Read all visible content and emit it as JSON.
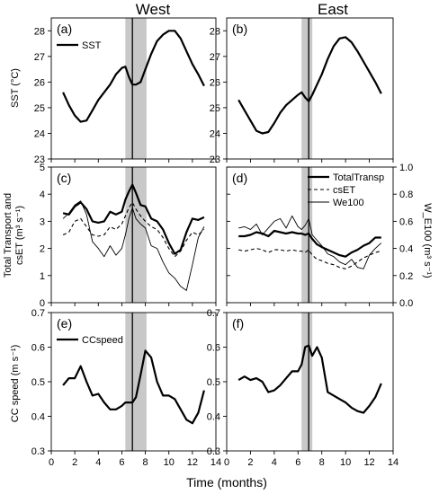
{
  "figure": {
    "column_titles": [
      "West",
      "East"
    ],
    "x_axis_label": "Time (months)",
    "row_ylabels": {
      "sst": "SST (°C)",
      "transport_line1": "Total Transport and",
      "transport_line2": "csET (m³ s⁻¹)",
      "we100": "W_E100 (m³ s⁻¹)",
      "ccspeed": "CC speed (m s⁻¹)"
    }
  },
  "chart_data": [
    {
      "panel": "(a)",
      "column": "West",
      "type": "line",
      "xlim": [
        0,
        14
      ],
      "ylim": [
        23,
        28.5
      ],
      "xticks": [
        0,
        2,
        4,
        6,
        8,
        10,
        12,
        14
      ],
      "yticks": [
        23,
        24,
        25,
        26,
        27,
        28
      ],
      "ylabel": "SST (°C)",
      "legend": {
        "position": "top-left",
        "entries": [
          "SST"
        ]
      },
      "vline": 6.9,
      "shaded": [
        6.3,
        8.1
      ],
      "series": [
        {
          "name": "SST",
          "style": "thick",
          "x": [
            1,
            1.5,
            2,
            2.5,
            3,
            3.5,
            4,
            4.5,
            5,
            5.5,
            6,
            6.3,
            6.6,
            6.9,
            7.2,
            7.6,
            8,
            8.5,
            9,
            9.5,
            10,
            10.5,
            11,
            11.5,
            12,
            12.5,
            13
          ],
          "y": [
            25.6,
            25.1,
            24.7,
            24.45,
            24.5,
            24.9,
            25.3,
            25.6,
            25.9,
            26.3,
            26.55,
            26.6,
            26.2,
            25.9,
            25.9,
            26.0,
            26.5,
            27.1,
            27.6,
            27.85,
            28.0,
            28.0,
            27.7,
            27.2,
            26.7,
            26.3,
            25.85
          ]
        }
      ]
    },
    {
      "panel": "(b)",
      "column": "East",
      "type": "line",
      "xlim": [
        0,
        14
      ],
      "ylim": [
        23,
        28.5
      ],
      "xticks": [
        0,
        2,
        4,
        6,
        8,
        10,
        12,
        14
      ],
      "yticks": [
        23,
        24,
        25,
        26,
        27,
        28
      ],
      "vline": 6.9,
      "shaded": [
        6.3,
        7.2
      ],
      "series": [
        {
          "name": "SST",
          "style": "thick",
          "x": [
            1,
            1.5,
            2,
            2.5,
            3,
            3.5,
            4,
            4.5,
            5,
            5.5,
            6,
            6.3,
            6.6,
            6.9,
            7.2,
            7.6,
            8,
            8.5,
            9,
            9.5,
            10,
            10.5,
            11,
            11.5,
            12,
            12.5,
            13
          ],
          "y": [
            25.3,
            24.9,
            24.5,
            24.1,
            24.0,
            24.05,
            24.4,
            24.8,
            25.1,
            25.3,
            25.5,
            25.6,
            25.4,
            25.25,
            25.5,
            25.9,
            26.3,
            26.9,
            27.4,
            27.7,
            27.75,
            27.55,
            27.2,
            26.8,
            26.4,
            26.0,
            25.55
          ]
        }
      ]
    },
    {
      "panel": "(c)",
      "column": "West",
      "type": "line",
      "xlim": [
        0,
        14
      ],
      "ylim": [
        0,
        5
      ],
      "y2lim": [
        0,
        1.0
      ],
      "xticks": [
        0,
        2,
        4,
        6,
        8,
        10,
        12,
        14
      ],
      "yticks": [
        0,
        1,
        2,
        3,
        4,
        5
      ],
      "vline": 6.9,
      "shaded": [
        6.3,
        8.1
      ],
      "series": [
        {
          "name": "TotalTransp",
          "style": "thick",
          "axis": "left",
          "x": [
            1,
            1.5,
            2,
            2.5,
            3,
            3.5,
            4,
            4.5,
            5,
            5.5,
            6,
            6.3,
            6.6,
            6.9,
            7.2,
            7.6,
            8,
            8.5,
            9,
            9.5,
            10,
            10.5,
            11,
            11.5,
            12,
            12.5,
            13
          ],
          "y": [
            3.3,
            3.25,
            3.55,
            3.7,
            3.45,
            3.0,
            2.95,
            3.0,
            3.35,
            3.25,
            3.35,
            3.8,
            4.1,
            4.35,
            4.05,
            3.6,
            3.55,
            3.1,
            3.0,
            2.7,
            2.2,
            1.8,
            1.95,
            2.6,
            3.1,
            3.05,
            3.15
          ]
        },
        {
          "name": "csET",
          "style": "dashed",
          "axis": "left",
          "x": [
            1,
            1.5,
            2,
            2.5,
            3,
            3.5,
            4,
            4.5,
            5,
            5.5,
            6,
            6.3,
            6.6,
            6.9,
            7.2,
            7.6,
            8,
            8.5,
            9,
            9.5,
            10,
            10.5,
            11,
            11.5,
            12,
            12.5,
            13
          ],
          "y": [
            2.5,
            2.6,
            3.0,
            3.1,
            2.8,
            2.5,
            2.45,
            2.5,
            2.8,
            2.7,
            2.9,
            3.2,
            3.5,
            3.7,
            3.45,
            3.2,
            3.0,
            2.8,
            2.7,
            2.4,
            2.0,
            1.7,
            1.9,
            2.3,
            2.6,
            2.5,
            2.7
          ]
        },
        {
          "name": "We100",
          "style": "thin",
          "axis": "right",
          "x": [
            1,
            1.5,
            2,
            2.5,
            3,
            3.5,
            4,
            4.5,
            5,
            5.5,
            6,
            6.3,
            6.6,
            6.9,
            7.2,
            7.6,
            8,
            8.5,
            9,
            9.5,
            10,
            10.5,
            11,
            11.5,
            12,
            12.5,
            13
          ],
          "y": [
            0.62,
            0.66,
            0.72,
            0.75,
            0.65,
            0.45,
            0.4,
            0.34,
            0.42,
            0.35,
            0.4,
            0.5,
            0.62,
            0.7,
            0.62,
            0.58,
            0.55,
            0.42,
            0.4,
            0.3,
            0.22,
            0.18,
            0.12,
            0.09,
            0.28,
            0.48,
            0.56
          ]
        }
      ]
    },
    {
      "panel": "(d)",
      "column": "East",
      "type": "line",
      "xlim": [
        0,
        14
      ],
      "ylim": [
        0,
        5
      ],
      "y2lim": [
        0,
        1.0
      ],
      "xticks": [
        0,
        2,
        4,
        6,
        8,
        10,
        12,
        14
      ],
      "y2ticks": [
        0.0,
        0.2,
        0.4,
        0.6,
        0.8,
        1.0
      ],
      "ylabel2": "W_E100 (m³ s⁻¹)",
      "legend": {
        "position": "top-right",
        "entries": [
          "TotalTransp",
          "csET",
          "We100"
        ]
      },
      "vline": 6.9,
      "shaded": [
        6.3,
        7.2
      ],
      "series": [
        {
          "name": "TotalTransp",
          "style": "thick",
          "axis": "left",
          "x": [
            1,
            1.5,
            2,
            2.5,
            3,
            3.5,
            4,
            4.5,
            5,
            5.5,
            6,
            6.3,
            6.6,
            6.9,
            7.2,
            7.6,
            8,
            8.5,
            9,
            9.5,
            10,
            10.5,
            11,
            11.5,
            12,
            12.5,
            13
          ],
          "y": [
            2.45,
            2.45,
            2.5,
            2.6,
            2.55,
            2.45,
            2.65,
            2.6,
            2.55,
            2.6,
            2.55,
            2.55,
            2.5,
            2.55,
            2.35,
            2.15,
            2.05,
            1.95,
            1.85,
            1.75,
            1.7,
            1.85,
            1.95,
            2.1,
            2.2,
            2.4,
            2.4
          ]
        },
        {
          "name": "csET",
          "style": "dashed",
          "axis": "left",
          "x": [
            1,
            1.5,
            2,
            2.5,
            3,
            3.5,
            4,
            4.5,
            5,
            5.5,
            6,
            6.3,
            6.6,
            6.9,
            7.2,
            7.6,
            8,
            8.5,
            9,
            9.5,
            10,
            10.5,
            11,
            11.5,
            12,
            12.5,
            13
          ],
          "y": [
            1.95,
            1.9,
            1.95,
            2.0,
            1.95,
            1.85,
            1.95,
            1.95,
            1.9,
            1.95,
            1.9,
            1.9,
            1.85,
            1.95,
            1.75,
            1.6,
            1.55,
            1.45,
            1.4,
            1.3,
            1.25,
            1.35,
            1.5,
            1.65,
            1.75,
            1.85,
            1.9
          ]
        },
        {
          "name": "We100",
          "style": "thin",
          "axis": "right",
          "x": [
            1,
            1.5,
            2,
            2.5,
            3,
            3.5,
            4,
            4.5,
            5,
            5.5,
            6,
            6.3,
            6.6,
            6.9,
            7.2,
            7.6,
            8,
            8.5,
            9,
            9.5,
            10,
            10.5,
            11,
            11.5,
            12,
            12.5,
            13
          ],
          "y": [
            0.55,
            0.56,
            0.54,
            0.58,
            0.5,
            0.55,
            0.6,
            0.62,
            0.55,
            0.64,
            0.56,
            0.54,
            0.57,
            0.62,
            0.5,
            0.46,
            0.42,
            0.36,
            0.34,
            0.3,
            0.28,
            0.32,
            0.26,
            0.25,
            0.35,
            0.4,
            0.44
          ]
        }
      ]
    },
    {
      "panel": "(e)",
      "column": "West",
      "type": "line",
      "xlim": [
        0,
        14
      ],
      "ylim": [
        0.3,
        0.7
      ],
      "xticks": [
        0,
        2,
        4,
        6,
        8,
        10,
        12,
        14
      ],
      "yticks": [
        0.3,
        0.4,
        0.5,
        0.6,
        0.7
      ],
      "ylabel": "CC speed (m s⁻¹)",
      "legend": {
        "position": "top-left",
        "entries": [
          "CCspeed"
        ]
      },
      "vline": 6.9,
      "shaded": [
        6.3,
        8.1
      ],
      "series": [
        {
          "name": "CCspeed",
          "style": "thick",
          "x": [
            1,
            1.5,
            2,
            2.5,
            3,
            3.5,
            4,
            4.5,
            5,
            5.5,
            6,
            6.3,
            6.6,
            6.9,
            7.2,
            7.6,
            8,
            8.5,
            9,
            9.5,
            10,
            10.5,
            11,
            11.5,
            12,
            12.5,
            13
          ],
          "y": [
            0.49,
            0.51,
            0.51,
            0.545,
            0.5,
            0.46,
            0.465,
            0.44,
            0.42,
            0.42,
            0.43,
            0.44,
            0.44,
            0.44,
            0.455,
            0.52,
            0.59,
            0.57,
            0.5,
            0.46,
            0.46,
            0.45,
            0.42,
            0.39,
            0.38,
            0.41,
            0.475
          ]
        }
      ]
    },
    {
      "panel": "(f)",
      "column": "East",
      "type": "line",
      "xlim": [
        0,
        14
      ],
      "ylim": [
        0.3,
        0.7
      ],
      "xticks": [
        0,
        2,
        4,
        6,
        8,
        10,
        12,
        14
      ],
      "yticks": [
        0.3,
        0.4,
        0.5,
        0.6,
        0.7
      ],
      "vline": 6.9,
      "shaded": [
        6.3,
        7.2
      ],
      "series": [
        {
          "name": "CCspeed",
          "style": "thick",
          "x": [
            1,
            1.5,
            2,
            2.5,
            3,
            3.5,
            4,
            4.5,
            5,
            5.5,
            6,
            6.3,
            6.6,
            6.9,
            7.2,
            7.6,
            8,
            8.5,
            9,
            9.5,
            10,
            10.5,
            11,
            11.5,
            12,
            12.5,
            13
          ],
          "y": [
            0.505,
            0.515,
            0.505,
            0.51,
            0.5,
            0.47,
            0.475,
            0.49,
            0.51,
            0.53,
            0.53,
            0.55,
            0.6,
            0.605,
            0.575,
            0.6,
            0.57,
            0.47,
            0.46,
            0.45,
            0.44,
            0.425,
            0.415,
            0.41,
            0.43,
            0.455,
            0.495
          ]
        }
      ]
    }
  ]
}
